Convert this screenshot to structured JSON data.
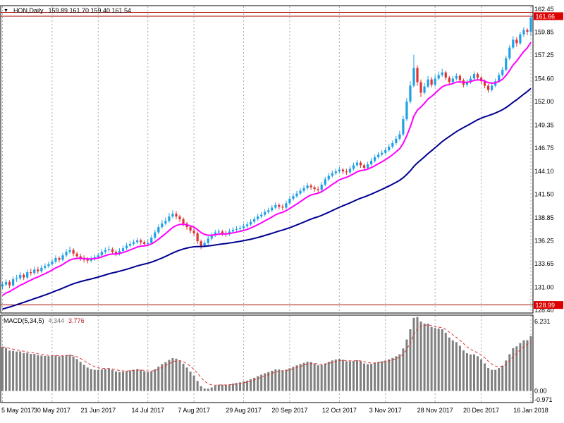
{
  "header": {
    "symbol": "HON,Daily",
    "ohlc_text": "159.89 161.70 159.40 161.54"
  },
  "icons": {
    "dropdown": "▼"
  },
  "macd_panel": {
    "label": "MACD(5,34,5)",
    "value_main": "4.344",
    "value_signal": "3.776"
  },
  "colors": {
    "bull": "#1e9fe8",
    "bear": "#e03232",
    "ma_fast": "#ff00ff",
    "ma_slow": "#000090",
    "grid": "#aaaaaa",
    "hline": "#aa0000",
    "tag_bg": "#dd0000",
    "tag_text": "#ffffff",
    "histogram": "#7f7f7f",
    "signal": "#e03232",
    "border": "#000000",
    "axis_text": "#000000"
  },
  "chart_data": {
    "type": "candlestick",
    "symbol": "HON",
    "timeframe": "Daily",
    "title": "HON,Daily",
    "y_axis_labels": [
      "162.45",
      "159.85",
      "157.25",
      "154.60",
      "152.00",
      "149.35",
      "146.75",
      "144.10",
      "141.50",
      "138.85",
      "136.25",
      "133.65",
      "131.00",
      "128.40"
    ],
    "price_tags": [
      {
        "value": 161.66,
        "label": "161.66"
      },
      {
        "value": 128.99,
        "label": "128.99"
      }
    ],
    "hlines": [
      {
        "value": 162.1
      },
      {
        "value": 161.66
      },
      {
        "value": 128.99
      }
    ],
    "x_ticks": [
      {
        "i": 0,
        "label": "5 May 2017"
      },
      {
        "i": 14,
        "label": "30 May 2017"
      },
      {
        "i": 27,
        "label": "21 Jun 2017"
      },
      {
        "i": 41,
        "label": "14 Jul 2017"
      },
      {
        "i": 54,
        "label": "7 Aug 2017"
      },
      {
        "i": 68,
        "label": "29 Aug 2017"
      },
      {
        "i": 81,
        "label": "20 Sep 2017"
      },
      {
        "i": 95,
        "label": "12 Oct 2017"
      },
      {
        "i": 108,
        "label": "3 Nov 2017"
      },
      {
        "i": 122,
        "label": "28 Nov 2017"
      },
      {
        "i": 135,
        "label": "20 Dec 2017"
      },
      {
        "i": 149,
        "label": "16 Jan 2018"
      }
    ],
    "overlays": [
      {
        "name": "ma-fast",
        "color": "#ff00ff",
        "alpha": 0.18,
        "seed": 129.8
      },
      {
        "name": "ma-slow",
        "color": "#000090",
        "alpha": 0.042,
        "seed": 128.4
      }
    ],
    "macd": {
      "label": "MACD(5,34,5)",
      "main_value": 4.344,
      "signal_value": 3.776,
      "axis_labels": [
        "6.231",
        "0.00",
        "-0.971"
      ],
      "fast_alpha": 0.3333,
      "slow_alpha": 0.0571,
      "signal_alpha": 0.3333,
      "fast_seed": 131.0,
      "slow_seed": 126.9
    },
    "candles": [
      [
        131.1,
        131.6,
        130.8,
        131.3
      ],
      [
        131.3,
        131.9,
        131.1,
        131.6
      ],
      [
        131.6,
        131.8,
        130.9,
        131.2
      ],
      [
        131.2,
        132.2,
        131.0,
        131.9
      ],
      [
        131.9,
        132.4,
        131.6,
        132.0
      ],
      [
        132.0,
        132.7,
        131.8,
        132.4
      ],
      [
        132.4,
        132.6,
        131.8,
        132.1
      ],
      [
        132.1,
        133.0,
        131.9,
        132.7
      ],
      [
        132.7,
        133.1,
        132.3,
        132.6
      ],
      [
        132.6,
        133.3,
        132.4,
        133.0
      ],
      [
        133.0,
        133.3,
        132.5,
        132.8
      ],
      [
        132.8,
        133.5,
        132.6,
        133.2
      ],
      [
        133.2,
        133.7,
        133.0,
        133.4
      ],
      [
        133.4,
        133.9,
        133.2,
        133.6
      ],
      [
        133.6,
        134.2,
        133.4,
        133.9
      ],
      [
        133.9,
        134.6,
        133.7,
        134.3
      ],
      [
        134.3,
        134.5,
        133.8,
        134.1
      ],
      [
        134.1,
        134.9,
        133.9,
        134.6
      ],
      [
        134.6,
        135.3,
        134.4,
        135.0
      ],
      [
        135.0,
        135.6,
        134.8,
        135.2
      ],
      [
        135.2,
        135.4,
        134.5,
        134.8
      ],
      [
        134.8,
        135.0,
        134.2,
        134.5
      ],
      [
        134.5,
        134.8,
        134.0,
        134.3
      ],
      [
        134.3,
        134.6,
        133.8,
        134.1
      ],
      [
        134.1,
        134.4,
        133.7,
        134.0
      ],
      [
        134.0,
        134.5,
        133.8,
        134.2
      ],
      [
        134.2,
        134.7,
        134.0,
        134.4
      ],
      [
        134.4,
        134.9,
        134.2,
        134.6
      ],
      [
        134.6,
        135.3,
        134.4,
        135.0
      ],
      [
        135.0,
        135.5,
        134.8,
        135.2
      ],
      [
        135.2,
        135.7,
        135.0,
        135.3
      ],
      [
        135.3,
        135.5,
        134.7,
        135.0
      ],
      [
        135.0,
        135.2,
        134.5,
        134.8
      ],
      [
        134.8,
        135.4,
        134.6,
        135.1
      ],
      [
        135.1,
        135.7,
        134.9,
        135.4
      ],
      [
        135.4,
        136.0,
        135.2,
        135.7
      ],
      [
        135.7,
        136.2,
        135.5,
        135.9
      ],
      [
        135.9,
        136.4,
        135.7,
        136.1
      ],
      [
        136.1,
        136.6,
        135.9,
        136.3
      ],
      [
        136.3,
        136.5,
        135.8,
        136.1
      ],
      [
        136.1,
        136.3,
        135.6,
        135.9
      ],
      [
        135.9,
        136.4,
        135.7,
        136.0
      ],
      [
        136.0,
        136.9,
        135.8,
        136.6
      ],
      [
        136.6,
        137.5,
        136.4,
        137.2
      ],
      [
        137.2,
        138.1,
        137.0,
        137.8
      ],
      [
        137.8,
        138.6,
        137.6,
        138.2
      ],
      [
        138.2,
        138.9,
        138.0,
        138.5
      ],
      [
        138.5,
        139.4,
        138.3,
        139.0
      ],
      [
        139.0,
        139.7,
        138.8,
        139.3
      ],
      [
        139.3,
        139.6,
        138.7,
        139.0
      ],
      [
        139.0,
        139.2,
        138.4,
        138.7
      ],
      [
        138.7,
        138.9,
        137.9,
        138.2
      ],
      [
        138.2,
        138.4,
        137.5,
        137.8
      ],
      [
        137.8,
        138.0,
        137.1,
        137.4
      ],
      [
        137.4,
        137.7,
        136.8,
        137.1
      ],
      [
        137.1,
        137.3,
        135.9,
        136.2
      ],
      [
        136.2,
        136.4,
        135.3,
        135.7
      ],
      [
        135.7,
        136.3,
        135.5,
        136.0
      ],
      [
        136.0,
        136.8,
        135.8,
        136.5
      ],
      [
        136.5,
        137.2,
        136.3,
        136.9
      ],
      [
        136.9,
        137.5,
        136.7,
        137.2
      ],
      [
        137.2,
        137.6,
        137.0,
        137.3
      ],
      [
        137.3,
        137.5,
        136.8,
        137.1
      ],
      [
        137.1,
        137.4,
        136.7,
        137.0
      ],
      [
        137.0,
        137.6,
        136.8,
        137.3
      ],
      [
        137.3,
        137.8,
        137.1,
        137.5
      ],
      [
        137.5,
        137.9,
        137.2,
        137.6
      ],
      [
        137.6,
        138.0,
        137.4,
        137.7
      ],
      [
        137.7,
        138.2,
        137.5,
        137.9
      ],
      [
        137.9,
        138.4,
        137.7,
        138.1
      ],
      [
        138.1,
        138.7,
        137.9,
        138.4
      ],
      [
        138.4,
        139.0,
        138.2,
        138.7
      ],
      [
        138.7,
        139.3,
        138.5,
        139.0
      ],
      [
        139.0,
        139.5,
        138.8,
        139.2
      ],
      [
        139.2,
        139.8,
        139.0,
        139.5
      ],
      [
        139.5,
        140.0,
        139.3,
        139.7
      ],
      [
        139.7,
        140.3,
        139.5,
        140.0
      ],
      [
        140.0,
        140.6,
        139.8,
        140.3
      ],
      [
        140.3,
        140.5,
        139.8,
        140.1
      ],
      [
        140.1,
        140.4,
        139.7,
        140.0
      ],
      [
        140.0,
        140.8,
        139.8,
        140.5
      ],
      [
        140.5,
        141.3,
        140.3,
        141.0
      ],
      [
        141.0,
        141.6,
        140.8,
        141.3
      ],
      [
        141.3,
        141.9,
        141.1,
        141.6
      ],
      [
        141.6,
        142.2,
        141.4,
        141.9
      ],
      [
        141.9,
        142.5,
        141.7,
        142.2
      ],
      [
        142.2,
        142.8,
        142.0,
        142.5
      ],
      [
        142.5,
        142.7,
        142.0,
        142.3
      ],
      [
        142.3,
        142.5,
        141.8,
        142.1
      ],
      [
        142.1,
        142.4,
        141.7,
        142.0
      ],
      [
        142.0,
        142.9,
        141.8,
        142.6
      ],
      [
        142.6,
        143.5,
        142.4,
        143.2
      ],
      [
        143.2,
        143.9,
        143.0,
        143.6
      ],
      [
        143.6,
        144.2,
        143.4,
        143.9
      ],
      [
        143.9,
        144.4,
        143.7,
        144.1
      ],
      [
        144.1,
        144.6,
        143.9,
        144.3
      ],
      [
        144.3,
        144.5,
        143.8,
        144.1
      ],
      [
        144.1,
        144.4,
        143.7,
        144.0
      ],
      [
        144.0,
        144.7,
        143.8,
        144.4
      ],
      [
        144.4,
        145.1,
        144.2,
        144.8
      ],
      [
        144.8,
        145.4,
        144.6,
        145.1
      ],
      [
        145.1,
        145.3,
        144.5,
        144.8
      ],
      [
        144.8,
        145.0,
        144.2,
        144.5
      ],
      [
        144.5,
        145.2,
        144.3,
        144.9
      ],
      [
        144.9,
        145.6,
        144.7,
        145.3
      ],
      [
        145.3,
        146.0,
        145.1,
        145.7
      ],
      [
        145.7,
        146.3,
        145.5,
        146.0
      ],
      [
        146.0,
        146.5,
        145.8,
        146.2
      ],
      [
        146.2,
        146.8,
        146.0,
        146.5
      ],
      [
        146.5,
        147.2,
        146.3,
        146.9
      ],
      [
        146.9,
        147.6,
        146.7,
        147.3
      ],
      [
        147.3,
        148.1,
        147.1,
        147.8
      ],
      [
        147.8,
        148.7,
        147.6,
        148.3
      ],
      [
        148.3,
        150.4,
        148.1,
        150.0
      ],
      [
        150.0,
        152.4,
        149.8,
        152.0
      ],
      [
        152.0,
        154.3,
        151.8,
        153.8
      ],
      [
        153.8,
        157.3,
        153.6,
        155.8
      ],
      [
        155.8,
        156.1,
        153.8,
        154.2
      ],
      [
        154.2,
        154.5,
        152.5,
        153.0
      ],
      [
        153.0,
        154.1,
        152.8,
        153.7
      ],
      [
        153.7,
        154.9,
        153.5,
        154.5
      ],
      [
        154.5,
        154.8,
        153.6,
        153.9
      ],
      [
        153.9,
        155.0,
        153.7,
        154.6
      ],
      [
        154.6,
        155.4,
        154.4,
        155.0
      ],
      [
        155.0,
        155.7,
        154.8,
        155.3
      ],
      [
        155.3,
        155.5,
        154.4,
        154.7
      ],
      [
        154.7,
        154.9,
        153.9,
        154.2
      ],
      [
        154.2,
        154.9,
        154.0,
        154.6
      ],
      [
        154.6,
        155.2,
        154.4,
        154.9
      ],
      [
        154.9,
        155.1,
        154.1,
        154.4
      ],
      [
        154.4,
        154.6,
        153.6,
        153.9
      ],
      [
        153.9,
        154.5,
        153.7,
        154.2
      ],
      [
        154.2,
        154.9,
        154.0,
        154.6
      ],
      [
        154.6,
        155.4,
        154.4,
        155.1
      ],
      [
        155.1,
        155.3,
        154.4,
        154.7
      ],
      [
        154.7,
        154.9,
        154.0,
        154.3
      ],
      [
        154.3,
        154.5,
        153.5,
        153.8
      ],
      [
        153.8,
        154.0,
        153.0,
        153.3
      ],
      [
        153.3,
        154.1,
        153.1,
        153.8
      ],
      [
        153.8,
        154.6,
        153.6,
        154.3
      ],
      [
        154.3,
        155.3,
        154.1,
        155.0
      ],
      [
        155.0,
        155.9,
        154.8,
        155.6
      ],
      [
        155.6,
        157.2,
        155.4,
        156.9
      ],
      [
        156.9,
        158.4,
        156.7,
        158.1
      ],
      [
        158.1,
        159.4,
        157.9,
        159.0
      ],
      [
        159.0,
        159.3,
        158.2,
        158.6
      ],
      [
        158.6,
        159.9,
        158.4,
        159.6
      ],
      [
        159.6,
        160.4,
        159.3,
        160.1
      ],
      [
        160.1,
        160.3,
        159.5,
        159.9
      ],
      [
        159.9,
        161.7,
        159.4,
        161.5
      ]
    ]
  }
}
